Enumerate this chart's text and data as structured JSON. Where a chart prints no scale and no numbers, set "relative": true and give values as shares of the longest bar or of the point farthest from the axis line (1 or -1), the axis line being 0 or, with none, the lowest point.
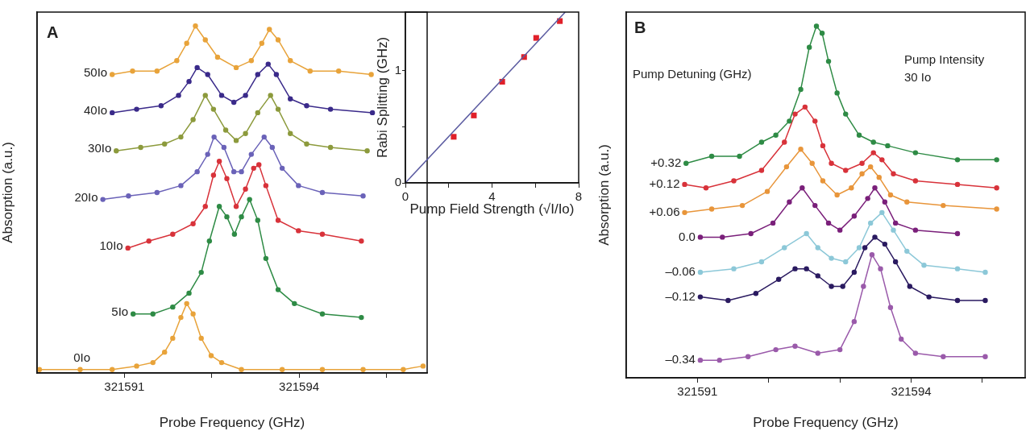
{
  "chart_data": [
    {
      "type": "line",
      "relative": true,
      "marker": "circle",
      "xlabel": "Probe Frequency (GHz)",
      "ylabel": "Absorption (a.u.)",
      "annotations": [
        "A"
      ],
      "xlim": [
        321589.5,
        321596.2
      ],
      "xticks": [
        321591,
        {
          "value": 321592.5,
          "label": null
        },
        321594,
        {
          "value": 321595.5,
          "label": null
        }
      ],
      "series": [
        {
          "name": "50Io",
          "color": "#e8a33a",
          "x": [
            321590.79,
            321591.14,
            321591.56,
            321591.9,
            321592.07,
            321592.22,
            321592.39,
            321592.6,
            321592.92,
            321593.18,
            321593.36,
            321593.49,
            321593.64,
            321593.85,
            321594.19,
            321594.68,
            321595.24
          ],
          "values": [
            0.86,
            0.87,
            0.87,
            0.9,
            0.95,
            1,
            0.96,
            0.91,
            0.88,
            0.9,
            0.95,
            0.99,
            0.96,
            0.9,
            0.87,
            0.87,
            0.86
          ]
        },
        {
          "name": "40Io",
          "color": "#3a2a8a",
          "x": [
            321590.79,
            321591.21,
            321591.63,
            321591.93,
            321592.11,
            321592.25,
            321592.43,
            321592.67,
            321592.88,
            321593.08,
            321593.29,
            321593.47,
            321593.61,
            321593.85,
            321594.13,
            321594.54,
            321595.26
          ],
          "values": [
            0.75,
            0.76,
            0.77,
            0.8,
            0.84,
            0.88,
            0.86,
            0.8,
            0.78,
            0.8,
            0.86,
            0.89,
            0.86,
            0.79,
            0.77,
            0.76,
            0.75
          ]
        },
        {
          "name": "30Io",
          "color": "#8c9a3c",
          "x": [
            321590.86,
            321591.28,
            321591.69,
            321591.97,
            321592.18,
            321592.39,
            321592.53,
            321592.74,
            321592.92,
            321593.08,
            321593.29,
            321593.51,
            321593.64,
            321593.85,
            321594.13,
            321594.54,
            321595.17
          ],
          "values": [
            0.64,
            0.65,
            0.66,
            0.68,
            0.73,
            0.8,
            0.76,
            0.7,
            0.67,
            0.69,
            0.75,
            0.8,
            0.76,
            0.69,
            0.66,
            0.65,
            0.64
          ]
        },
        {
          "name": "20Io",
          "color": "#6a62b8",
          "x": [
            321590.63,
            321591.07,
            321591.56,
            321591.97,
            321592.25,
            321592.43,
            321592.54,
            321592.71,
            321592.88,
            321593.01,
            321593.18,
            321593.4,
            321593.54,
            321593.71,
            321593.99,
            321594.4,
            321595.1
          ],
          "values": [
            0.5,
            0.51,
            0.52,
            0.54,
            0.58,
            0.63,
            0.68,
            0.65,
            0.58,
            0.58,
            0.63,
            0.68,
            0.65,
            0.59,
            0.54,
            0.52,
            0.51
          ]
        },
        {
          "name": "10Io",
          "color": "#d8323a",
          "x": [
            321591.06,
            321591.42,
            321591.83,
            321592.18,
            321592.39,
            321592.53,
            321592.63,
            321592.76,
            321592.92,
            321593.08,
            321593.22,
            321593.31,
            321593.43,
            321593.64,
            321593.99,
            321594.4,
            321595.07
          ],
          "values": [
            0.36,
            0.38,
            0.4,
            0.43,
            0.48,
            0.57,
            0.61,
            0.56,
            0.48,
            0.53,
            0.59,
            0.6,
            0.54,
            0.44,
            0.41,
            0.4,
            0.38
          ]
        },
        {
          "name": "5Io",
          "color": "#2e8b45",
          "x": [
            321591.15,
            321591.49,
            321591.83,
            321592.11,
            321592.32,
            321592.46,
            321592.63,
            321592.76,
            321592.89,
            321593.01,
            321593.15,
            321593.29,
            321593.43,
            321593.64,
            321593.92,
            321594.4,
            321595.07
          ],
          "values": [
            0.17,
            0.17,
            0.19,
            0.23,
            0.29,
            0.38,
            0.48,
            0.45,
            0.4,
            0.45,
            0.5,
            0.44,
            0.33,
            0.24,
            0.2,
            0.17,
            0.16
          ]
        },
        {
          "name": "0Io",
          "color": "#e8a33a",
          "x": [
            321589.54,
            321590.24,
            321590.79,
            321591.21,
            321591.49,
            321591.69,
            321591.83,
            321591.97,
            321592.07,
            321592.18,
            321592.32,
            321592.49,
            321592.67,
            321593.01,
            321593.71,
            321594.4,
            321595.1,
            321595.79,
            321596.13
          ],
          "values": [
            0.01,
            0.01,
            0.01,
            0.02,
            0.03,
            0.06,
            0.1,
            0.16,
            0.2,
            0.17,
            0.1,
            0.05,
            0.03,
            0.01,
            0.01,
            0.01,
            0.01,
            0.01,
            0.02
          ]
        }
      ]
    },
    {
      "type": "scatter",
      "xlabel": "Pump Field Strength (√I/Io)",
      "ylabel": "Rabi Splitting (GHz)",
      "xlim": [
        0,
        8
      ],
      "ylim": [
        0,
        1.52
      ],
      "xticks": [
        0,
        {
          "value": 2,
          "label": null
        },
        4,
        {
          "value": 6,
          "label": null
        },
        8
      ],
      "yticks": [
        0,
        {
          "value": 0.5,
          "label": null
        },
        1
      ],
      "series": [
        {
          "type": "line",
          "marker": "none",
          "color": "#5a5aa0",
          "x": [
            0,
            7.38
          ],
          "values": [
            0,
            1.52
          ]
        },
        {
          "marker": "square",
          "color": "#e0202a",
          "x": [
            2.23,
            3.16,
            4.47,
            5.48,
            6.04,
            7.13
          ],
          "values": [
            0.41,
            0.6,
            0.9,
            1.12,
            1.29,
            1.44
          ]
        }
      ]
    },
    {
      "type": "line",
      "relative": true,
      "marker": "circle",
      "xlabel": "Probe Frequency (GHz)",
      "ylabel": "Absorption (a.u.)",
      "annotations": [
        "B",
        "Pump Detuning (GHz)",
        "Pump Intensity",
        "30 Io"
      ],
      "xlim": [
        321590,
        321595.6
      ],
      "xticks": [
        321591,
        {
          "value": 321592,
          "label": null
        },
        {
          "value": 321593,
          "label": null
        },
        321594,
        {
          "value": 321595,
          "label": null
        }
      ],
      "series": [
        {
          "name": "+0.32",
          "color": "#2e8b45",
          "x": [
            321590.84,
            321591.2,
            321591.59,
            321591.9,
            321592.1,
            321592.29,
            321592.45,
            321592.57,
            321592.67,
            321592.75,
            321592.84,
            321592.96,
            321593.08,
            321593.27,
            321593.47,
            321593.67,
            321594.06,
            321594.65,
            321595.2
          ],
          "values": [
            0.61,
            0.63,
            0.63,
            0.67,
            0.69,
            0.73,
            0.82,
            0.94,
            1,
            0.98,
            0.9,
            0.81,
            0.75,
            0.69,
            0.67,
            0.66,
            0.64,
            0.62,
            0.62
          ]
        },
        {
          "name": "+0.12",
          "color": "#d8323a",
          "x": [
            321590.82,
            321591.12,
            321591.51,
            321591.9,
            321592.22,
            321592.37,
            321592.51,
            321592.65,
            321592.76,
            321592.88,
            321593.08,
            321593.31,
            321593.47,
            321593.59,
            321593.75,
            321594.06,
            321594.65,
            321595.2
          ],
          "values": [
            0.55,
            0.54,
            0.56,
            0.59,
            0.67,
            0.75,
            0.77,
            0.73,
            0.66,
            0.61,
            0.59,
            0.61,
            0.64,
            0.62,
            0.58,
            0.56,
            0.55,
            0.54
          ]
        },
        {
          "name": "+0.06",
          "color": "#e8953a",
          "x": [
            321590.82,
            321591.2,
            321591.63,
            321591.98,
            321592.25,
            321592.45,
            321592.61,
            321592.76,
            321592.96,
            321593.16,
            321593.31,
            321593.43,
            321593.55,
            321593.71,
            321593.94,
            321594.45,
            321595.2
          ],
          "values": [
            0.47,
            0.48,
            0.49,
            0.53,
            0.6,
            0.65,
            0.61,
            0.56,
            0.52,
            0.54,
            0.58,
            0.6,
            0.57,
            0.52,
            0.5,
            0.49,
            0.48
          ]
        },
        {
          "name": "0.0",
          "color": "#7a1f7a",
          "x": [
            321591.04,
            321591.35,
            321591.75,
            321592.06,
            321592.29,
            321592.47,
            321592.65,
            321592.84,
            321593,
            321593.2,
            321593.39,
            321593.49,
            321593.63,
            321593.78,
            321594.06,
            321594.65
          ],
          "values": [
            0.4,
            0.4,
            0.41,
            0.44,
            0.5,
            0.54,
            0.49,
            0.44,
            0.42,
            0.46,
            0.51,
            0.54,
            0.5,
            0.44,
            0.42,
            0.41
          ]
        },
        {
          "name": "–0.06",
          "color": "#8cc8d8",
          "x": [
            321591.04,
            321591.51,
            321591.9,
            321592.22,
            321592.53,
            321592.69,
            321592.88,
            321593.08,
            321593.27,
            321593.43,
            321593.59,
            321593.75,
            321593.94,
            321594.18,
            321594.65,
            321595.04
          ],
          "values": [
            0.3,
            0.31,
            0.33,
            0.37,
            0.41,
            0.37,
            0.34,
            0.33,
            0.37,
            0.44,
            0.47,
            0.42,
            0.36,
            0.32,
            0.31,
            0.3
          ]
        },
        {
          "name": "–0.12",
          "color": "#2a1a60",
          "x": [
            321591.04,
            321591.43,
            321591.82,
            321592.14,
            321592.37,
            321592.53,
            321592.69,
            321592.88,
            321593.04,
            321593.2,
            321593.35,
            321593.49,
            321593.63,
            321593.78,
            321593.98,
            321594.25,
            321594.65,
            321595.04
          ],
          "values": [
            0.23,
            0.22,
            0.24,
            0.28,
            0.31,
            0.31,
            0.29,
            0.26,
            0.26,
            0.3,
            0.37,
            0.4,
            0.38,
            0.33,
            0.26,
            0.23,
            0.22,
            0.22
          ]
        },
        {
          "name": "–0.34",
          "color": "#9a5aaa",
          "x": [
            321591.04,
            321591.31,
            321591.71,
            321592.1,
            321592.37,
            321592.69,
            321593,
            321593.2,
            321593.33,
            321593.45,
            321593.57,
            321593.71,
            321593.86,
            321594.06,
            321594.45,
            321595.04
          ],
          "values": [
            0.05,
            0.05,
            0.06,
            0.08,
            0.09,
            0.07,
            0.08,
            0.16,
            0.26,
            0.35,
            0.31,
            0.2,
            0.11,
            0.07,
            0.06,
            0.06
          ]
        }
      ]
    }
  ]
}
